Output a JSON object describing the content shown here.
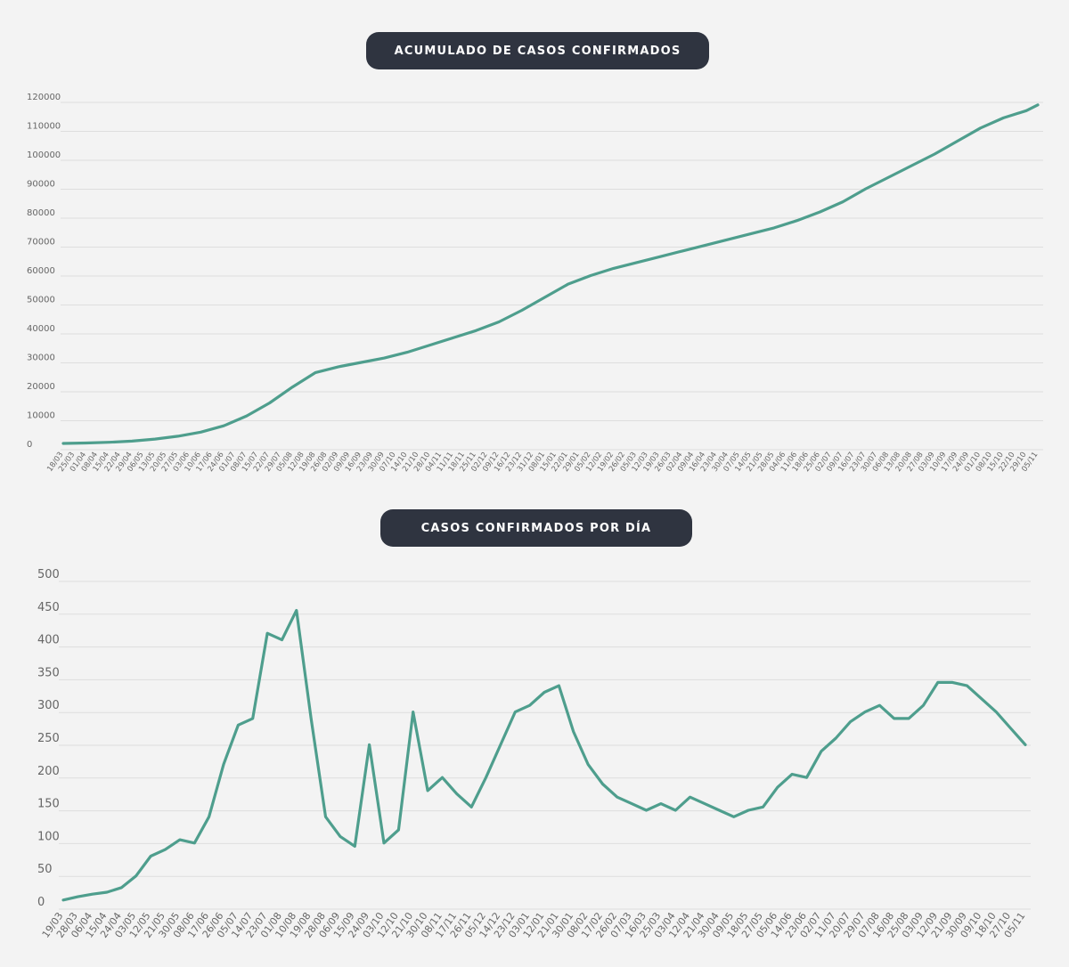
{
  "line_color": "#4e9e8d",
  "title_bg_color": "#2f3440",
  "chart_data": [
    {
      "type": "line",
      "title": "ACUMULADO DE CASOS CONFIRMADOS",
      "xlabel": "",
      "ylabel": "",
      "ylim": [
        0,
        120000
      ],
      "yticks": [
        0,
        10000,
        20000,
        30000,
        40000,
        50000,
        60000,
        70000,
        80000,
        90000,
        100000,
        110000,
        120000
      ],
      "grid": true,
      "x_ticks": [
        "18/03",
        "25/03",
        "01/04",
        "08/04",
        "15/04",
        "22/04",
        "29/04",
        "06/05",
        "13/05",
        "20/05",
        "27/05",
        "03/06",
        "10/06",
        "17/06",
        "24/06",
        "01/07",
        "08/07",
        "15/07",
        "22/07",
        "29/07",
        "05/08",
        "12/08",
        "19/08",
        "26/08",
        "02/09",
        "09/09",
        "16/09",
        "23/09",
        "30/09",
        "07/10",
        "14/10",
        "21/10",
        "28/10",
        "04/11",
        "11/11",
        "18/11",
        "25/11",
        "02/12",
        "09/12",
        "16/12",
        "23/12",
        "31/12",
        "08/01",
        "15/01",
        "22/01",
        "29/01",
        "05/02",
        "12/02",
        "19/02",
        "26/02",
        "05/03",
        "12/03",
        "19/03",
        "26/03",
        "02/04",
        "09/04",
        "16/04",
        "23/04",
        "30/04",
        "07/05",
        "14/05",
        "21/05",
        "28/05",
        "04/06",
        "11/06",
        "18/06",
        "25/06",
        "02/07",
        "09/07",
        "16/07",
        "23/07",
        "30/07",
        "06/08",
        "13/08",
        "20/08",
        "27/08",
        "03/09",
        "10/09",
        "17/09",
        "24/09",
        "01/10",
        "08/10",
        "15/10",
        "22/10",
        "29/10",
        "05/11"
      ],
      "series": [
        {
          "x": [
            "18/03",
            "01/04",
            "15/04",
            "29/04",
            "13/05",
            "27/05",
            "10/06",
            "24/06",
            "08/07",
            "22/07",
            "05/08",
            "19/08",
            "02/09",
            "16/09",
            "30/09",
            "14/10",
            "28/10",
            "11/11",
            "25/11",
            "09/12",
            "23/12",
            "08/01",
            "22/01",
            "05/02",
            "19/02",
            "05/03",
            "19/03",
            "02/04",
            "16/04",
            "30/04",
            "14/05",
            "28/05",
            "11/06",
            "25/06",
            "09/07",
            "23/07",
            "06/08",
            "20/08",
            "03/09",
            "17/09",
            "01/10",
            "15/10",
            "29/10",
            "05/11"
          ],
          "values": [
            0,
            150,
            400,
            800,
            1500,
            2500,
            3900,
            6100,
            9500,
            14000,
            19500,
            24500,
            26500,
            28000,
            29500,
            31500,
            34000,
            36500,
            39000,
            42000,
            46000,
            50500,
            55000,
            58000,
            60500,
            62500,
            64500,
            66500,
            68500,
            70500,
            72500,
            74500,
            77000,
            80000,
            83500,
            88000,
            92000,
            96000,
            100000,
            104500,
            109000,
            112500,
            115000,
            117000
          ]
        }
      ]
    },
    {
      "type": "line",
      "title": "CASOS CONFIRMADOS POR DÍA",
      "xlabel": "",
      "ylabel": "",
      "ylim": [
        0,
        500
      ],
      "yticks": [
        0,
        50,
        100,
        150,
        200,
        250,
        300,
        350,
        400,
        450,
        500
      ],
      "grid": true,
      "x_ticks": [
        "19/03",
        "28/03",
        "06/04",
        "15/04",
        "24/04",
        "03/05",
        "12/05",
        "21/05",
        "30/05",
        "08/06",
        "17/06",
        "26/06",
        "05/07",
        "14/07",
        "23/07",
        "01/08",
        "10/08",
        "19/08",
        "28/08",
        "06/09",
        "15/09",
        "24/09",
        "03/10",
        "12/10",
        "21/10",
        "30/10",
        "08/11",
        "17/11",
        "26/11",
        "05/12",
        "14/12",
        "23/12",
        "03/01",
        "12/01",
        "21/01",
        "30/01",
        "08/02",
        "17/02",
        "26/02",
        "07/03",
        "16/03",
        "25/03",
        "03/04",
        "12/04",
        "21/04",
        "30/04",
        "09/05",
        "18/05",
        "27/05",
        "05/06",
        "14/06",
        "23/06",
        "02/07",
        "11/07",
        "20/07",
        "29/07",
        "07/08",
        "16/08",
        "25/08",
        "03/09",
        "12/09",
        "21/09",
        "30/09",
        "09/10",
        "18/10",
        "27/10",
        "05/11"
      ],
      "series": [
        {
          "x": [
            "19/03",
            "28/03",
            "06/04",
            "15/04",
            "24/04",
            "03/05",
            "12/05",
            "21/05",
            "30/05",
            "08/06",
            "17/06",
            "26/06",
            "05/07",
            "14/07",
            "23/07",
            "01/08",
            "10/08",
            "19/08",
            "28/08",
            "06/09",
            "15/09",
            "24/09",
            "03/10",
            "12/10",
            "21/10",
            "30/10",
            "08/11",
            "17/11",
            "26/11",
            "05/12",
            "14/12",
            "23/12",
            "03/01",
            "12/01",
            "21/01",
            "30/01",
            "08/02",
            "17/02",
            "26/02",
            "07/03",
            "16/03",
            "25/03",
            "03/04",
            "12/04",
            "21/04",
            "30/04",
            "09/05",
            "18/05",
            "27/05",
            "05/06",
            "14/06",
            "23/06",
            "02/07",
            "11/07",
            "20/07",
            "29/07",
            "07/08",
            "16/08",
            "25/08",
            "03/09",
            "12/09",
            "21/09",
            "30/09",
            "09/10",
            "18/10",
            "27/10",
            "05/11"
          ],
          "values": [
            3,
            8,
            12,
            15,
            22,
            40,
            70,
            80,
            95,
            90,
            130,
            210,
            270,
            280,
            410,
            400,
            445,
            280,
            130,
            100,
            85,
            240,
            90,
            110,
            290,
            170,
            190,
            165,
            145,
            190,
            240,
            290,
            300,
            320,
            330,
            260,
            210,
            180,
            160,
            150,
            140,
            150,
            140,
            160,
            150,
            140,
            130,
            140,
            145,
            175,
            195,
            190,
            230,
            250,
            275,
            290,
            300,
            280,
            280,
            300,
            335,
            335,
            330,
            310,
            290,
            265,
            240
          ]
        }
      ]
    }
  ]
}
